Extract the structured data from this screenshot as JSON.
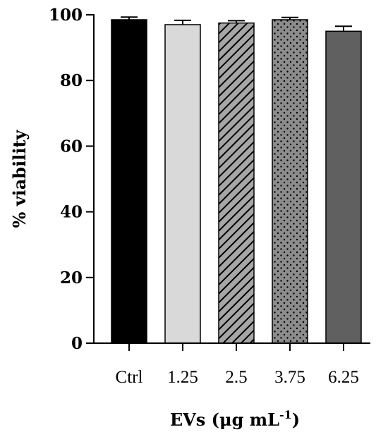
{
  "chart_data": {
    "type": "bar",
    "categories": [
      "Ctrl",
      "1.25",
      "2.5",
      "3.75",
      "6.25"
    ],
    "values": [
      98.5,
      97.0,
      97.5,
      98.5,
      95.0
    ],
    "errors": [
      0.8,
      1.3,
      0.7,
      0.7,
      1.5
    ],
    "ylabel": "% viability",
    "xlabel_main": "EVs (μg mL",
    "xlabel_superscript": "-1",
    "xlabel_close": ")",
    "ylim": [
      0,
      100
    ],
    "yticks": [
      0,
      20,
      40,
      60,
      80,
      100
    ],
    "bar_styles": [
      {
        "fill": "#000000",
        "pattern": "solid"
      },
      {
        "fill": "#d9d9d9",
        "pattern": "solid"
      },
      {
        "fill": "#a6a6a6",
        "pattern": "diagonal-hatch"
      },
      {
        "fill": "#8c8c8c",
        "pattern": "dots"
      },
      {
        "fill": "#606060",
        "pattern": "solid"
      }
    ]
  }
}
